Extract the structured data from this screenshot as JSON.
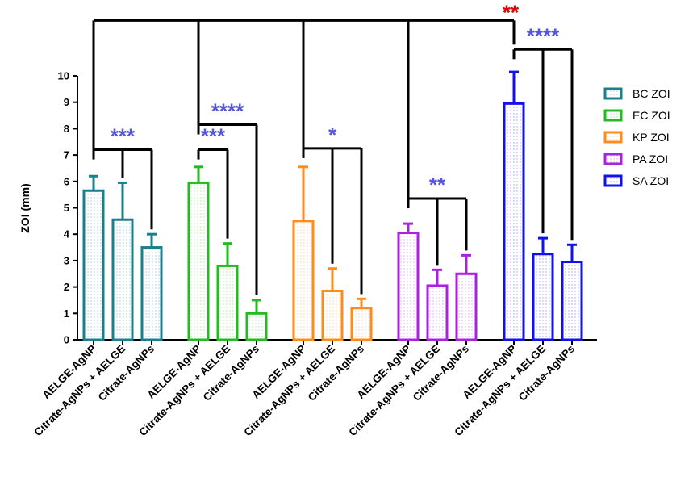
{
  "chart_data": {
    "type": "bar",
    "title": "",
    "xlabel": "",
    "ylabel": "ZOI (mm)",
    "ylim": [
      0,
      10
    ],
    "yticks": [
      0,
      1,
      2,
      3,
      4,
      5,
      6,
      7,
      8,
      9,
      10
    ],
    "grid": false,
    "legend_position": "right",
    "categories": [
      "AELGE-AgNP",
      "Citrate-AgNPs + AELGE",
      "Citrate-AgNPs"
    ],
    "groups": [
      {
        "name": "BC ZOI",
        "color": "#1B7F8C",
        "values": [
          5.65,
          4.55,
          3.5
        ],
        "errors": [
          0.55,
          1.4,
          0.5
        ],
        "signif": [
          {
            "label": "***",
            "from": 0,
            "to": 2,
            "y": 7.2,
            "color": "#5555E0"
          }
        ]
      },
      {
        "name": "EC ZOI",
        "color": "#22BB22",
        "values": [
          5.95,
          2.8,
          1.0
        ],
        "errors": [
          0.6,
          0.85,
          0.5
        ],
        "signif": [
          {
            "label": "***",
            "from": 0,
            "to": 1,
            "y": 7.2,
            "color": "#5555E0"
          },
          {
            "label": "****",
            "from": 0,
            "to": 2,
            "y": 8.15,
            "color": "#5555E0"
          }
        ]
      },
      {
        "name": "KP ZOI",
        "color": "#FF8C1A",
        "values": [
          4.5,
          1.85,
          1.2
        ],
        "errors": [
          2.05,
          0.85,
          0.35
        ],
        "signif": [
          {
            "label": "*",
            "from": 0,
            "to": 2,
            "y": 7.25,
            "color": "#5555E0"
          }
        ]
      },
      {
        "name": "PA ZOI",
        "color": "#AA22DD",
        "values": [
          4.05,
          2.05,
          2.5
        ],
        "errors": [
          0.35,
          0.6,
          0.7
        ],
        "signif": [
          {
            "label": "**",
            "from": 0,
            "to": 2,
            "y": 5.35,
            "color": "#5555E0"
          }
        ]
      },
      {
        "name": "SA ZOI",
        "color": "#1111EE",
        "values": [
          8.95,
          3.25,
          2.95
        ],
        "errors": [
          1.2,
          0.6,
          0.65
        ],
        "signif": [
          {
            "label": "****",
            "from": 0,
            "to": 2,
            "y": 11.0,
            "color": "#5555E0"
          }
        ]
      }
    ],
    "top_comparison": {
      "label": "**",
      "color": "#E00000",
      "y": 12.1
    }
  }
}
